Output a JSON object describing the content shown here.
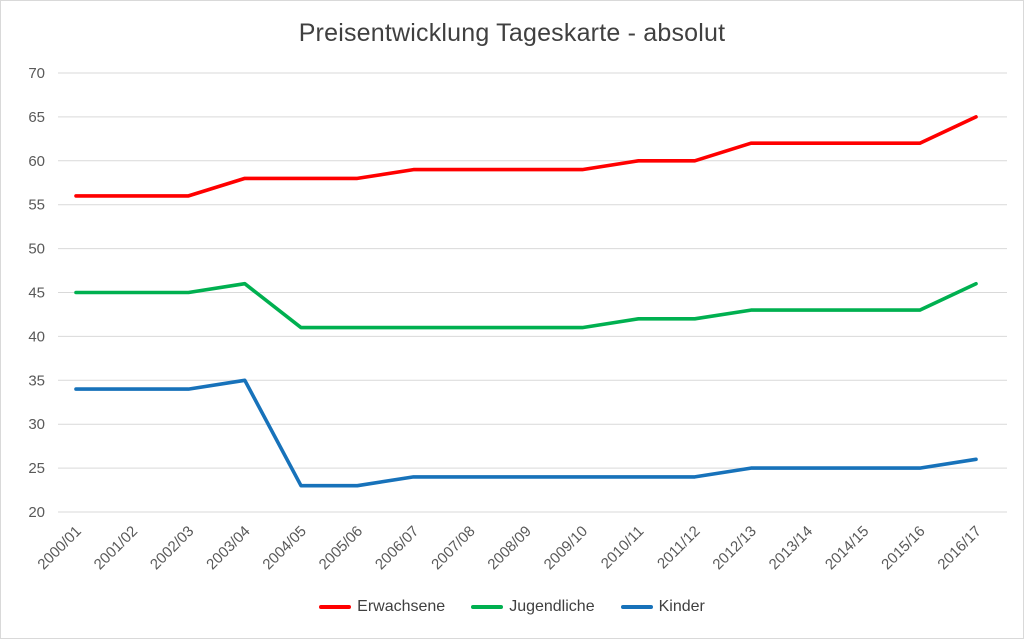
{
  "page": {
    "title": "Preisentwicklung Tageskarte - absolut"
  },
  "colors": {
    "background": "#ffffff",
    "border": "#d9d9d9",
    "gridline": "#d9d9d9",
    "axis_text": "#595959",
    "title_text": "#404040",
    "series_red": "#ff0000",
    "series_green": "#00b050",
    "series_blue": "#1772ba"
  },
  "chart_data": {
    "type": "line",
    "title": "Preisentwicklung Tageskarte - absolut",
    "xlabel": "",
    "ylabel": "",
    "ylim": [
      20,
      70
    ],
    "ytick_step": 5,
    "grid": true,
    "legend_position": "bottom",
    "categories": [
      "2000/01",
      "2001/02",
      "2002/03",
      "2003/04",
      "2004/05",
      "2005/06",
      "2006/07",
      "2007/08",
      "2008/09",
      "2009/10",
      "2010/11",
      "2011/12",
      "2012/13",
      "2013/14",
      "2014/15",
      "2015/16",
      "2016/17"
    ],
    "series": [
      {
        "name": "Erwachsene",
        "color": "#ff0000",
        "values": [
          56,
          56,
          56,
          58,
          58,
          58,
          59,
          59,
          59,
          59,
          60,
          60,
          62,
          62,
          62,
          62,
          65
        ]
      },
      {
        "name": "Jugendliche",
        "color": "#00b050",
        "values": [
          45,
          45,
          45,
          46,
          41,
          41,
          41,
          41,
          41,
          41,
          42,
          42,
          43,
          43,
          43,
          43,
          46
        ]
      },
      {
        "name": "Kinder",
        "color": "#1772ba",
        "values": [
          34,
          34,
          34,
          35,
          23,
          23,
          24,
          24,
          24,
          24,
          24,
          24,
          25,
          25,
          25,
          25,
          26
        ]
      }
    ]
  }
}
